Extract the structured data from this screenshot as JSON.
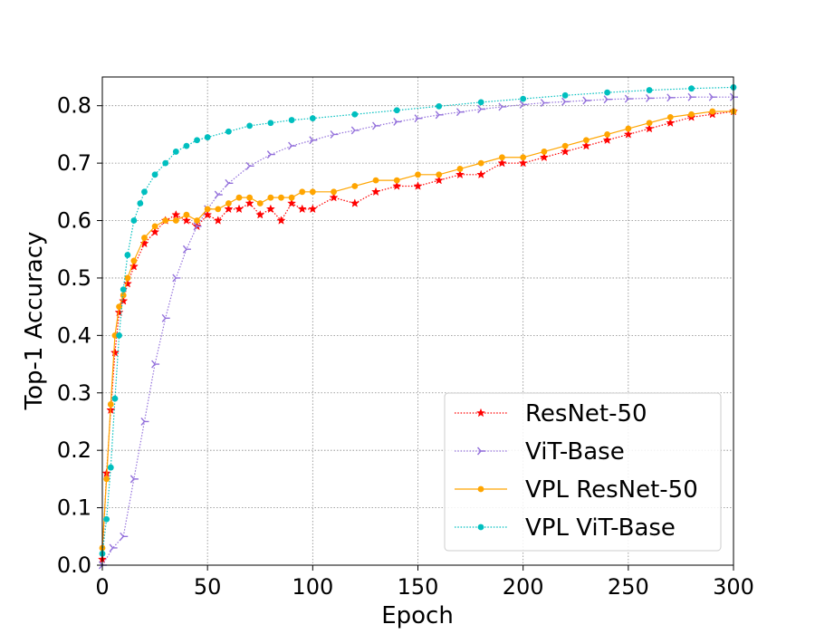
{
  "chart_data": {
    "type": "line",
    "title": "",
    "xlabel": "Epoch",
    "ylabel": "Top-1 Accuracy",
    "xlim": [
      0,
      300
    ],
    "ylim": [
      0.0,
      0.85
    ],
    "xticks": [
      0,
      50,
      100,
      150,
      200,
      250,
      300
    ],
    "xtick_labels": [
      "0",
      "50",
      "100",
      "150",
      "200",
      "250",
      "300"
    ],
    "yticks": [
      0.0,
      0.1,
      0.2,
      0.3,
      0.4,
      0.5,
      0.6,
      0.7,
      0.8
    ],
    "ytick_labels": [
      "0.0",
      "0.1",
      "0.2",
      "0.3",
      "0.4",
      "0.5",
      "0.6",
      "0.7",
      "0.8"
    ],
    "grid": true,
    "legend_position": "bottom-right",
    "series": [
      {
        "name": "ResNet-50",
        "color": "#ff0000",
        "line_style": "dotted",
        "marker": "star",
        "x": [
          0,
          2,
          4,
          6,
          8,
          10,
          12,
          15,
          20,
          25,
          30,
          35,
          40,
          45,
          50,
          55,
          60,
          65,
          70,
          75,
          80,
          85,
          90,
          95,
          100,
          110,
          120,
          130,
          140,
          150,
          160,
          170,
          180,
          190,
          200,
          210,
          220,
          230,
          240,
          250,
          260,
          270,
          280,
          290,
          300
        ],
        "y": [
          0.01,
          0.16,
          0.27,
          0.37,
          0.44,
          0.46,
          0.49,
          0.52,
          0.56,
          0.58,
          0.6,
          0.61,
          0.6,
          0.59,
          0.61,
          0.6,
          0.62,
          0.62,
          0.63,
          0.61,
          0.62,
          0.6,
          0.63,
          0.62,
          0.62,
          0.64,
          0.63,
          0.65,
          0.66,
          0.66,
          0.67,
          0.68,
          0.68,
          0.7,
          0.7,
          0.71,
          0.72,
          0.73,
          0.74,
          0.75,
          0.76,
          0.77,
          0.78,
          0.785,
          0.79
        ]
      },
      {
        "name": "ViT-Base",
        "color": "#9370db",
        "line_style": "dotted",
        "marker": "tri_right",
        "x": [
          0,
          5,
          10,
          15,
          20,
          25,
          30,
          35,
          40,
          45,
          50,
          55,
          60,
          70,
          80,
          90,
          100,
          110,
          120,
          130,
          140,
          150,
          160,
          170,
          180,
          190,
          200,
          210,
          220,
          230,
          240,
          250,
          260,
          270,
          280,
          290,
          300
        ],
        "y": [
          0.0,
          0.03,
          0.05,
          0.15,
          0.25,
          0.35,
          0.43,
          0.5,
          0.55,
          0.59,
          0.62,
          0.645,
          0.665,
          0.695,
          0.715,
          0.73,
          0.74,
          0.75,
          0.757,
          0.765,
          0.772,
          0.778,
          0.784,
          0.789,
          0.794,
          0.798,
          0.802,
          0.805,
          0.807,
          0.809,
          0.811,
          0.812,
          0.813,
          0.814,
          0.815,
          0.815,
          0.815
        ]
      },
      {
        "name": "VPL ResNet-50",
        "color": "#ffa500",
        "line_style": "solid",
        "marker": "circle",
        "x": [
          0,
          2,
          4,
          6,
          8,
          10,
          12,
          15,
          20,
          25,
          30,
          35,
          40,
          45,
          50,
          55,
          60,
          65,
          70,
          75,
          80,
          85,
          90,
          95,
          100,
          110,
          120,
          130,
          140,
          150,
          160,
          170,
          180,
          190,
          200,
          210,
          220,
          230,
          240,
          250,
          260,
          270,
          280,
          290,
          300
        ],
        "y": [
          0.03,
          0.15,
          0.28,
          0.4,
          0.45,
          0.47,
          0.5,
          0.53,
          0.57,
          0.59,
          0.6,
          0.6,
          0.61,
          0.6,
          0.62,
          0.62,
          0.63,
          0.64,
          0.64,
          0.63,
          0.64,
          0.64,
          0.64,
          0.65,
          0.65,
          0.65,
          0.66,
          0.67,
          0.67,
          0.68,
          0.68,
          0.69,
          0.7,
          0.71,
          0.71,
          0.72,
          0.73,
          0.74,
          0.75,
          0.76,
          0.77,
          0.78,
          0.785,
          0.79,
          0.79
        ]
      },
      {
        "name": "VPL ViT-Base",
        "color": "#00bfbf",
        "line_style": "dotted",
        "marker": "circle",
        "x": [
          0,
          2,
          4,
          6,
          8,
          10,
          12,
          15,
          18,
          20,
          25,
          30,
          35,
          40,
          45,
          50,
          60,
          70,
          80,
          90,
          100,
          120,
          140,
          160,
          180,
          200,
          220,
          240,
          260,
          280,
          300
        ],
        "y": [
          0.02,
          0.08,
          0.17,
          0.29,
          0.4,
          0.48,
          0.54,
          0.6,
          0.63,
          0.65,
          0.68,
          0.7,
          0.72,
          0.73,
          0.74,
          0.745,
          0.755,
          0.765,
          0.77,
          0.775,
          0.778,
          0.785,
          0.792,
          0.799,
          0.806,
          0.812,
          0.818,
          0.823,
          0.827,
          0.83,
          0.832
        ]
      }
    ]
  }
}
